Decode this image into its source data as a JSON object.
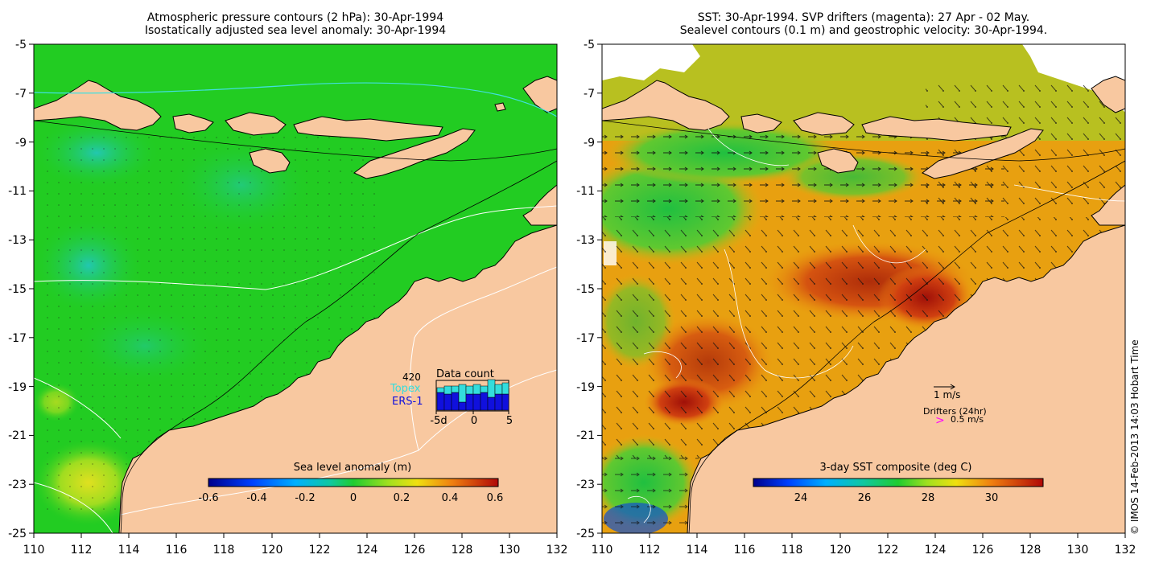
{
  "left_panel": {
    "title_line1": "Atmospheric pressure contours (2 hPa): 30-Apr-1994",
    "title_line2": "Isostatically adjusted sea level anomaly: 30-Apr-1994",
    "lat_ticks": [
      "-5",
      "-7",
      "-9",
      "-11",
      "-13",
      "-15",
      "-17",
      "-19",
      "-21",
      "-23",
      "-25"
    ],
    "lon_ticks": [
      "110",
      "112",
      "114",
      "116",
      "118",
      "120",
      "122",
      "124",
      "126",
      "128",
      "130",
      "132"
    ],
    "colorbar": {
      "label": "Sea level anomaly (m)",
      "ticks": [
        "-0.6",
        "-0.4",
        "-0.2",
        "0",
        "0.2",
        "0.4",
        "0.6"
      ]
    },
    "data_count": {
      "title": "Data count",
      "max_label": "420",
      "series": [
        "Topex",
        "ERS-1"
      ],
      "x_ticks": [
        "-5d",
        "0",
        "5"
      ],
      "topex_color": "#33dddd",
      "ers_color": "#1010dd"
    }
  },
  "right_panel": {
    "title_line1": "SST: 30-Apr-1994. SVP drifters (magenta): 27 Apr - 02 May.",
    "title_line2": "Sealevel contours (0.1 m) and geostrophic velocity: 30-Apr-1994.",
    "lat_ticks": [
      "-5",
      "-7",
      "-9",
      "-11",
      "-13",
      "-15",
      "-17",
      "-19",
      "-21",
      "-23",
      "-25"
    ],
    "lon_ticks": [
      "110",
      "112",
      "114",
      "116",
      "118",
      "120",
      "122",
      "124",
      "126",
      "128",
      "130",
      "132"
    ],
    "velocity_legend": "1 m/s",
    "drifter_legend_title": "Drifters (24hr)",
    "drifter_legend_value": "0.5 m/s",
    "drifter_color": "#ff00ff",
    "colorbar": {
      "label": "3-day SST composite (deg C)",
      "ticks": [
        "24",
        "26",
        "28",
        "30"
      ]
    }
  },
  "credit": "© IMOS 14-Feb-2013 14:03 Hobart Time",
  "colors": {
    "land": "#f8c8a0",
    "ocean_green": "#22cc22",
    "ocean_teal": "#22c89a",
    "sst_orange": "#ee8c10",
    "sst_red": "#b01808"
  }
}
